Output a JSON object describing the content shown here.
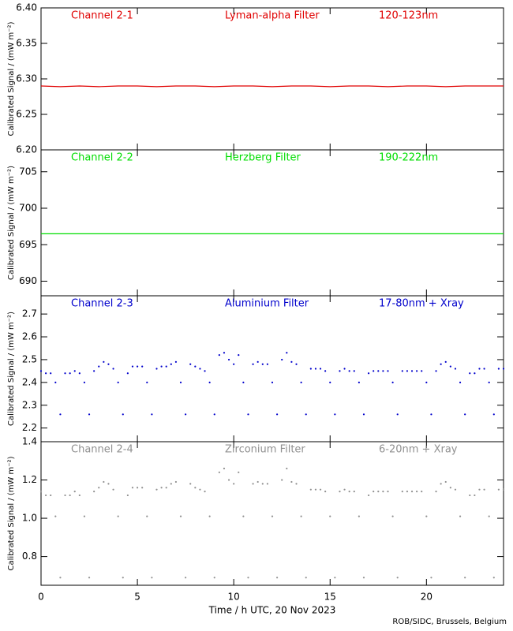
{
  "chart_data": [
    {
      "type": "line",
      "channel": "Channel 2-1",
      "filter": "Lyman-alpha Filter",
      "band": "120-123nm",
      "y_label": "Calibrated Signal / (mW m⁻²)",
      "color": "#e00000",
      "ylim": [
        6.2,
        6.4
      ],
      "yticks": [
        {
          "value": 6.2,
          "label": "6.20"
        },
        {
          "value": 6.25,
          "label": "6.25"
        },
        {
          "value": 6.3,
          "label": "6.30"
        },
        {
          "value": 6.35,
          "label": "6.35"
        },
        {
          "value": 6.4,
          "label": "6.40"
        }
      ],
      "xlim": [
        0,
        24
      ],
      "xticks": [
        0,
        5,
        10,
        15,
        20
      ],
      "x": [
        0,
        1,
        2,
        3,
        4,
        5,
        6,
        7,
        8,
        9,
        10,
        11,
        12,
        13,
        14,
        15,
        16,
        17,
        18,
        19,
        20,
        21,
        22,
        23,
        24
      ],
      "values": [
        6.29,
        6.289,
        6.29,
        6.289,
        6.29,
        6.29,
        6.289,
        6.29,
        6.29,
        6.289,
        6.29,
        6.29,
        6.289,
        6.29,
        6.29,
        6.289,
        6.29,
        6.29,
        6.289,
        6.29,
        6.29,
        6.289,
        6.29,
        6.29,
        6.29
      ]
    },
    {
      "type": "line",
      "channel": "Channel 2-2",
      "filter": "Herzberg Filter",
      "band": "190-222nm",
      "y_label": "Calibrated Signal / (mW m⁻²)",
      "color": "#00dd00",
      "ylim": [
        688,
        708
      ],
      "yticks": [
        690,
        695,
        700,
        705
      ],
      "xlim": [
        0,
        24
      ],
      "xticks": [
        0,
        5,
        10,
        15,
        20
      ],
      "x": [
        0,
        1,
        2,
        3,
        4,
        5,
        6,
        7,
        8,
        9,
        10,
        11,
        12,
        13,
        14,
        15,
        16,
        17,
        18,
        19,
        20,
        21,
        22,
        23,
        24
      ],
      "values": [
        696.5,
        696.5,
        696.5,
        696.5,
        696.5,
        696.5,
        696.5,
        696.5,
        696.5,
        696.5,
        696.5,
        696.5,
        696.5,
        696.5,
        696.5,
        696.5,
        696.5,
        696.5,
        696.5,
        696.5,
        696.5,
        696.5,
        696.5,
        696.5,
        696.5
      ]
    },
    {
      "type": "scatter",
      "channel": "Channel 2-3",
      "filter": "Aluminium Filter",
      "band": "17-80nm + Xray",
      "y_label": "Calibrated Signal / (mW m⁻²)",
      "color": "#0000cc",
      "ylim": [
        2.14,
        2.78
      ],
      "yticks": [
        2.2,
        2.3,
        2.4,
        2.5,
        2.6,
        2.7
      ],
      "xlim": [
        0,
        24
      ],
      "xticks": [
        0,
        5,
        10,
        15,
        20
      ],
      "x": [
        0,
        0.25,
        0.5,
        0.75,
        1,
        1.25,
        1.5,
        1.75,
        2,
        2.25,
        2.5,
        2.75,
        3,
        3.25,
        3.5,
        3.75,
        4,
        4.25,
        4.5,
        4.75,
        5,
        5.25,
        5.5,
        5.75,
        6,
        6.25,
        6.5,
        6.75,
        7,
        7.25,
        7.5,
        7.75,
        8,
        8.25,
        8.5,
        8.75,
        9,
        9.25,
        9.5,
        9.75,
        10,
        10.25,
        10.5,
        10.75,
        11,
        11.25,
        11.5,
        11.75,
        12,
        12.25,
        12.5,
        12.75,
        13,
        13.25,
        13.5,
        13.75,
        14,
        14.25,
        14.5,
        14.75,
        15,
        15.25,
        15.5,
        15.75,
        16,
        16.25,
        16.5,
        16.75,
        17,
        17.25,
        17.5,
        17.75,
        18,
        18.25,
        18.5,
        18.75,
        19,
        19.25,
        19.5,
        19.75,
        20,
        20.25,
        20.5,
        20.75,
        21,
        21.25,
        21.5,
        21.75,
        22,
        22.25,
        22.5,
        22.75,
        23,
        23.25,
        23.5,
        23.75,
        24
      ],
      "values": [
        2.45,
        2.44,
        2.44,
        2.4,
        2.26,
        2.44,
        2.44,
        2.45,
        2.44,
        2.4,
        2.26,
        2.45,
        2.47,
        2.49,
        2.48,
        2.46,
        2.4,
        2.26,
        2.44,
        2.47,
        2.47,
        2.47,
        2.4,
        2.26,
        2.46,
        2.47,
        2.47,
        2.48,
        2.49,
        2.4,
        2.26,
        2.48,
        2.47,
        2.46,
        2.45,
        2.4,
        2.26,
        2.52,
        2.53,
        2.5,
        2.48,
        2.52,
        2.4,
        2.26,
        2.48,
        2.49,
        2.48,
        2.48,
        2.4,
        2.26,
        2.5,
        2.53,
        2.49,
        2.48,
        2.4,
        2.26,
        2.46,
        2.46,
        2.46,
        2.45,
        2.4,
        2.26,
        2.45,
        2.46,
        2.45,
        2.45,
        2.4,
        2.26,
        2.44,
        2.45,
        2.45,
        2.45,
        2.45,
        2.4,
        2.26,
        2.45,
        2.45,
        2.45,
        2.45,
        2.45,
        2.4,
        2.26,
        2.45,
        2.48,
        2.49,
        2.47,
        2.46,
        2.4,
        2.26,
        2.44,
        2.44,
        2.46,
        2.46,
        2.4,
        2.26,
        2.46,
        2.46
      ]
    },
    {
      "type": "scatter",
      "channel": "Channel 2-4",
      "filter": "Zirconium Filter",
      "band": "6-20nm + Xray",
      "y_label": "Calibrated Signal / (mW m⁻²)",
      "color": "#909090",
      "ylim": [
        0.65,
        1.4
      ],
      "yticks": [
        0.8,
        {
          "value": 1,
          "label": "1.0"
        },
        1.2,
        1.4
      ],
      "xlim": [
        0,
        24
      ],
      "xticks": [
        0,
        5,
        10,
        15,
        20
      ],
      "x_label": "Time / h UTC, 20 Nov 2023",
      "x": [
        0,
        0.25,
        0.5,
        0.75,
        1,
        1.25,
        1.5,
        1.75,
        2,
        2.25,
        2.5,
        2.75,
        3,
        3.25,
        3.5,
        3.75,
        4,
        4.25,
        4.5,
        4.75,
        5,
        5.25,
        5.5,
        5.75,
        6,
        6.25,
        6.5,
        6.75,
        7,
        7.25,
        7.5,
        7.75,
        8,
        8.25,
        8.5,
        8.75,
        9,
        9.25,
        9.5,
        9.75,
        10,
        10.25,
        10.5,
        10.75,
        11,
        11.25,
        11.5,
        11.75,
        12,
        12.25,
        12.5,
        12.75,
        13,
        13.25,
        13.5,
        13.75,
        14,
        14.25,
        14.5,
        14.75,
        15,
        15.25,
        15.5,
        15.75,
        16,
        16.25,
        16.5,
        16.75,
        17,
        17.25,
        17.5,
        17.75,
        18,
        18.25,
        18.5,
        18.75,
        19,
        19.25,
        19.5,
        19.75,
        20,
        20.25,
        20.5,
        20.75,
        21,
        21.25,
        21.5,
        21.75,
        22,
        22.25,
        22.5,
        22.75,
        23,
        23.25,
        23.5,
        23.75,
        24
      ],
      "values": [
        1.14,
        1.12,
        1.12,
        1.01,
        0.69,
        1.12,
        1.12,
        1.14,
        1.12,
        1.01,
        0.69,
        1.14,
        1.16,
        1.19,
        1.18,
        1.15,
        1.01,
        0.69,
        1.12,
        1.16,
        1.16,
        1.16,
        1.01,
        0.69,
        1.15,
        1.16,
        1.16,
        1.18,
        1.19,
        1.01,
        0.69,
        1.18,
        1.16,
        1.15,
        1.14,
        1.01,
        0.69,
        1.24,
        1.26,
        1.2,
        1.18,
        1.24,
        1.01,
        0.69,
        1.18,
        1.19,
        1.18,
        1.18,
        1.01,
        0.69,
        1.2,
        1.26,
        1.19,
        1.18,
        1.01,
        0.69,
        1.15,
        1.15,
        1.15,
        1.14,
        1.01,
        0.69,
        1.14,
        1.15,
        1.14,
        1.14,
        1.01,
        0.69,
        1.12,
        1.14,
        1.14,
        1.14,
        1.14,
        1.01,
        0.69,
        1.14,
        1.14,
        1.14,
        1.14,
        1.14,
        1.01,
        0.69,
        1.14,
        1.18,
        1.19,
        1.16,
        1.15,
        1.01,
        0.69,
        1.12,
        1.12,
        1.15,
        1.15,
        1.01,
        0.69,
        1.15,
        1.15
      ]
    }
  ],
  "footer": "ROB/SIDC, Brussels, Belgium"
}
